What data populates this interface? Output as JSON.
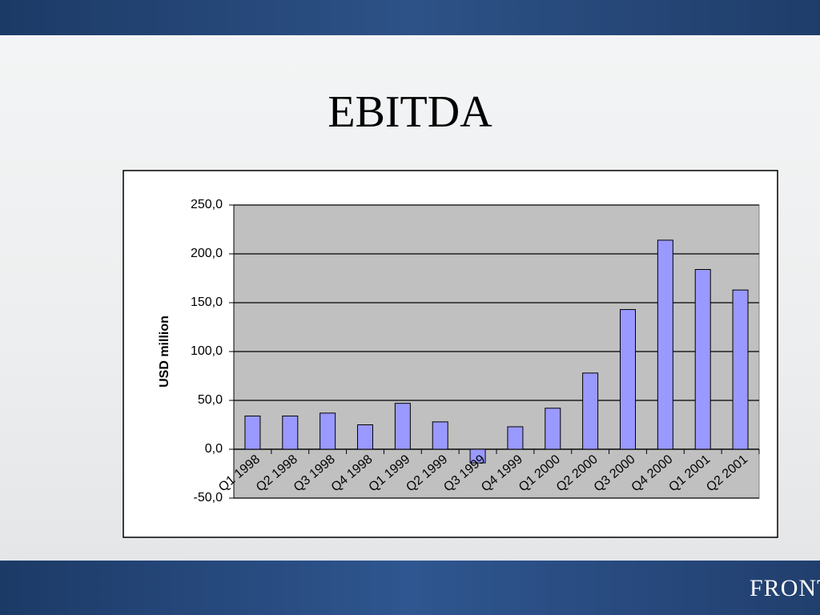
{
  "title": "EBITDA",
  "logo_text": "FRONT",
  "chart_data": {
    "type": "bar",
    "y_label": "USD million",
    "categories": [
      "Q1 1998",
      "Q2 1998",
      "Q3 1998",
      "Q4 1998",
      "Q1 1999",
      "Q2 1999",
      "Q3 1999",
      "Q4 1999",
      "Q1 2000",
      "Q2 2000",
      "Q3 2000",
      "Q4 2000",
      "Q1 2001",
      "Q2 2001"
    ],
    "values": [
      34,
      34,
      37,
      25,
      47,
      28,
      -14,
      23,
      42,
      78,
      143,
      214,
      184,
      163
    ],
    "color": "#9999ff",
    "ylim": [
      -50,
      250
    ],
    "yticks": [
      {
        "value": -50,
        "label": "-50,0"
      },
      {
        "value": 0,
        "label": "0,0"
      },
      {
        "value": 50,
        "label": "50,0"
      },
      {
        "value": 100,
        "label": "100,0"
      },
      {
        "value": 150,
        "label": "150,0"
      },
      {
        "value": 200,
        "label": "200,0"
      },
      {
        "value": 250,
        "label": "250,0"
      }
    ],
    "grid": true
  }
}
